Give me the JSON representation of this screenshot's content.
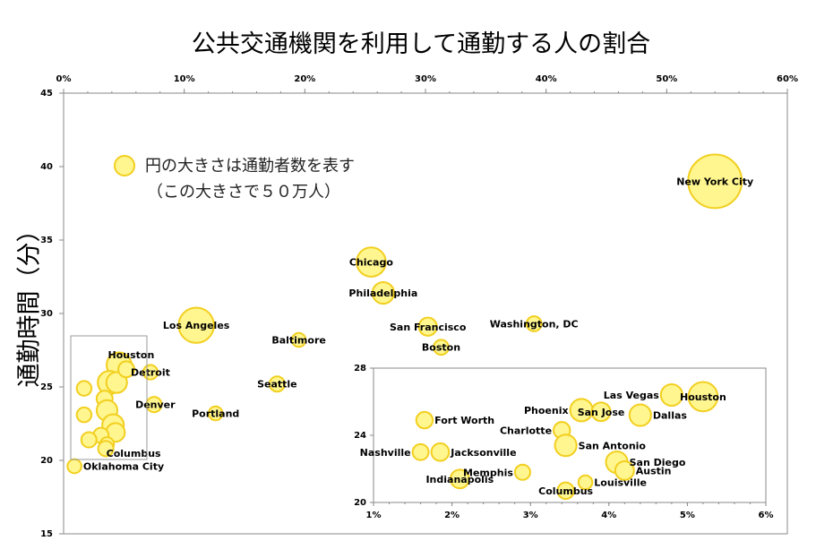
{
  "chart_data": [
    {
      "type": "scatter",
      "subtype": "bubble",
      "title": "公共交通機関を利用して通勤する人の割合",
      "ylabel": "通勤時間（分）",
      "xlim": [
        0,
        60
      ],
      "ylim": [
        15,
        45
      ],
      "x_ticks": [
        "0%",
        "10%",
        "20%",
        "30%",
        "40%",
        "50%",
        "60%"
      ],
      "y_ticks": [
        "15",
        "20",
        "25",
        "30",
        "35",
        "40",
        "45"
      ],
      "x_axis_position": "top",
      "legend_note": [
        "円の大きさは通勤者数を表す",
        "（この大きさで５０万人）"
      ],
      "legend_bubble_commuters": 500000,
      "points": [
        {
          "label": "New York City",
          "x": 54.0,
          "y": 39.0,
          "commuters": 3700000,
          "label_pos": "center"
        },
        {
          "label": "Chicago",
          "x": 25.5,
          "y": 33.5,
          "commuters": 1100000,
          "label_pos": "center"
        },
        {
          "label": "Philadelphia",
          "x": 26.5,
          "y": 31.4,
          "commuters": 600000,
          "label_pos": "center"
        },
        {
          "label": "Los Angeles",
          "x": 11.0,
          "y": 29.2,
          "commuters": 1600000,
          "label_pos": "center"
        },
        {
          "label": "Baltimore",
          "x": 19.5,
          "y": 28.2,
          "commuters": 250000,
          "label_pos": "center"
        },
        {
          "label": "San Francisco",
          "x": 30.2,
          "y": 29.1,
          "commuters": 420000,
          "label_pos": "center"
        },
        {
          "label": "Washington, DC",
          "x": 39.0,
          "y": 29.3,
          "commuters": 290000,
          "label_pos": "center"
        },
        {
          "label": "Boston",
          "x": 31.3,
          "y": 27.7,
          "commuters": 290000,
          "label_pos": "center"
        },
        {
          "label": "Seattle",
          "x": 17.7,
          "y": 25.2,
          "commuters": 300000,
          "label_pos": "center"
        },
        {
          "label": "Portland",
          "x": 12.6,
          "y": 23.2,
          "commuters": 250000,
          "label_pos": "center"
        },
        {
          "label": "Oklahoma City",
          "x": 0.9,
          "y": 19.6,
          "commuters": 250000,
          "label_pos": "right"
        }
      ],
      "unlabeled_cluster": [
        {
          "x": 4.6,
          "y": 26.5,
          "commuters": 800000
        },
        {
          "x": 3.8,
          "y": 25.3,
          "commuters": 700000
        },
        {
          "x": 4.4,
          "y": 25.3,
          "commuters": 550000
        },
        {
          "x": 5.2,
          "y": 26.2,
          "commuters": 330000
        },
        {
          "x": 7.2,
          "y": 26.0,
          "commuters": 270000
        },
        {
          "x": 1.7,
          "y": 24.9,
          "commuters": 280000
        },
        {
          "x": 3.4,
          "y": 24.2,
          "commuters": 330000
        },
        {
          "x": 7.5,
          "y": 23.8,
          "commuters": 300000
        },
        {
          "x": 3.6,
          "y": 23.4,
          "commuters": 550000
        },
        {
          "x": 1.7,
          "y": 23.1,
          "commuters": 280000
        },
        {
          "x": 4.1,
          "y": 22.4,
          "commuters": 600000
        },
        {
          "x": 4.3,
          "y": 21.9,
          "commuters": 450000
        },
        {
          "x": 3.1,
          "y": 21.7,
          "commuters": 300000
        },
        {
          "x": 2.1,
          "y": 21.4,
          "commuters": 300000
        },
        {
          "x": 3.6,
          "y": 21.1,
          "commuters": 250000
        },
        {
          "x": 3.5,
          "y": 20.8,
          "commuters": 300000
        }
      ],
      "cluster_labels": [
        {
          "label": "Houston",
          "x": 5.6,
          "y": 27.2
        },
        {
          "label": "Detroit",
          "x": 7.2,
          "y": 26.0
        },
        {
          "label": "Denver",
          "x": 7.6,
          "y": 23.8
        },
        {
          "label": "Columbus",
          "x": 5.8,
          "y": 20.5
        }
      ]
    },
    {
      "type": "scatter",
      "subtype": "bubble",
      "role": "inset",
      "xlim": [
        1,
        6
      ],
      "ylim": [
        20,
        28
      ],
      "x_ticks": [
        "1%",
        "2%",
        "3%",
        "4%",
        "5%",
        "6%"
      ],
      "y_ticks": [
        "20",
        "24",
        "28"
      ],
      "points": [
        {
          "label": "Las Vegas",
          "x": 4.8,
          "y": 26.4,
          "commuters": 600000,
          "label_pos": "left"
        },
        {
          "label": "Houston",
          "x": 5.2,
          "y": 26.3,
          "commuters": 1100000,
          "label_pos": "center"
        },
        {
          "label": "Phoenix",
          "x": 3.65,
          "y": 25.5,
          "commuters": 650000,
          "label_pos": "left"
        },
        {
          "label": "San Jose",
          "x": 3.9,
          "y": 25.4,
          "commuters": 450000,
          "label_pos": "center"
        },
        {
          "label": "Dallas",
          "x": 4.4,
          "y": 25.2,
          "commuters": 600000,
          "label_pos": "right"
        },
        {
          "label": "Fort Worth",
          "x": 1.65,
          "y": 24.9,
          "commuters": 350000,
          "label_pos": "right"
        },
        {
          "label": "Charlotte",
          "x": 3.4,
          "y": 24.3,
          "commuters": 350000,
          "label_pos": "left"
        },
        {
          "label": "San Antonio",
          "x": 3.45,
          "y": 23.4,
          "commuters": 600000,
          "label_pos": "right"
        },
        {
          "label": "Nashville",
          "x": 1.6,
          "y": 23.0,
          "commuters": 330000,
          "label_pos": "left"
        },
        {
          "label": "Jacksonville",
          "x": 1.85,
          "y": 23.0,
          "commuters": 400000,
          "label_pos": "right"
        },
        {
          "label": "San Diego",
          "x": 4.1,
          "y": 22.4,
          "commuters": 600000,
          "label_pos": "right"
        },
        {
          "label": "Austin",
          "x": 4.2,
          "y": 21.9,
          "commuters": 450000,
          "label_pos": "right"
        },
        {
          "label": "Memphis",
          "x": 2.9,
          "y": 21.8,
          "commuters": 300000,
          "label_pos": "left"
        },
        {
          "label": "Indianapolis",
          "x": 2.1,
          "y": 21.4,
          "commuters": 450000,
          "label_pos": "center"
        },
        {
          "label": "Louisville",
          "x": 3.7,
          "y": 21.2,
          "commuters": 250000,
          "label_pos": "right"
        },
        {
          "label": "Columbus",
          "x": 3.45,
          "y": 20.7,
          "commuters": 350000,
          "label_pos": "center"
        }
      ]
    }
  ],
  "colors": {
    "bubble_fill": "#fff68f",
    "bubble_stroke": "#f2cf1f",
    "axis": "#888888"
  }
}
